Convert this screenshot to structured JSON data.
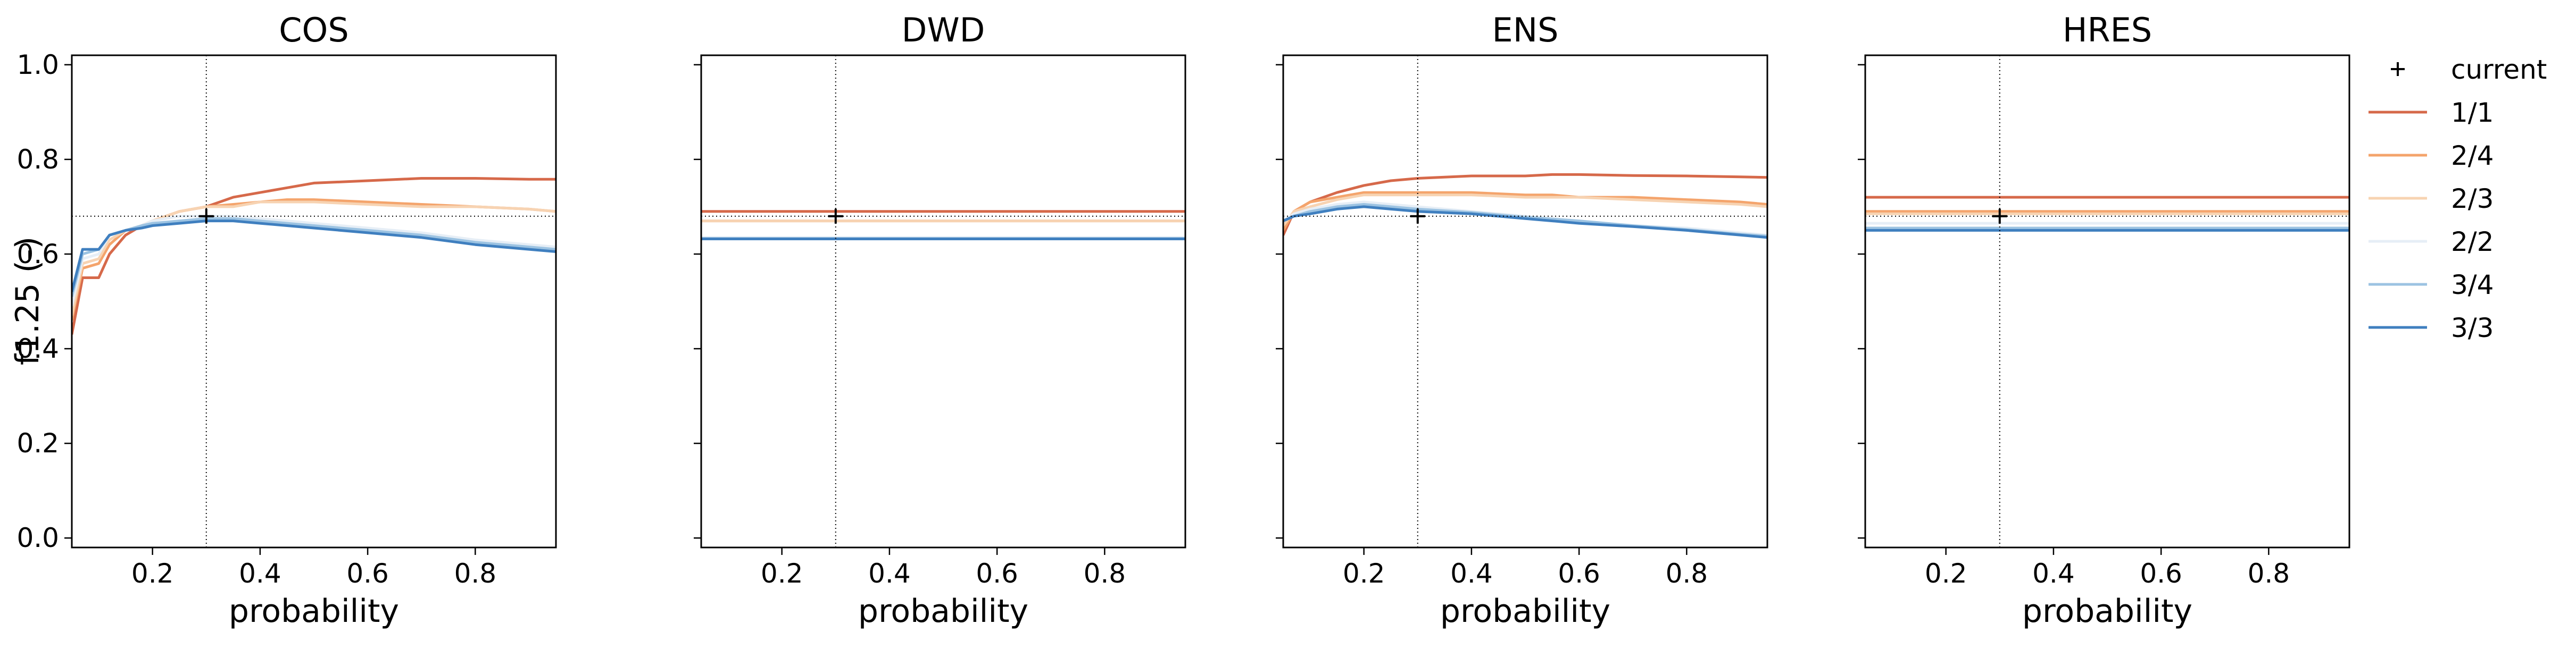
{
  "figure": {
    "ylabel": "f1.25 (-)",
    "xlabel": "probability",
    "legend": {
      "placement": "right-outside",
      "current_label": "current"
    }
  },
  "chart_data": [
    {
      "type": "line",
      "title": "COS",
      "xlabel": "probability",
      "ylabel": "f1.25 (-)",
      "xlim": [
        0.05,
        0.95
      ],
      "ylim": [
        -0.02,
        1.02
      ],
      "xticks": [
        0.2,
        0.4,
        0.6,
        0.8
      ],
      "yticks": [
        0.0,
        0.2,
        0.4,
        0.6,
        0.8,
        1.0
      ],
      "current": {
        "x": 0.3,
        "y": 0.68
      },
      "series": [
        {
          "name": "1/1",
          "color": "#d6694a",
          "x": [
            0.05,
            0.07,
            0.1,
            0.12,
            0.15,
            0.18,
            0.2,
            0.25,
            0.3,
            0.35,
            0.4,
            0.45,
            0.5,
            0.6,
            0.7,
            0.8,
            0.9,
            0.95
          ],
          "y": [
            0.43,
            0.55,
            0.55,
            0.6,
            0.64,
            0.66,
            0.67,
            0.69,
            0.7,
            0.72,
            0.73,
            0.74,
            0.75,
            0.755,
            0.76,
            0.76,
            0.758,
            0.758
          ]
        },
        {
          "name": "2/4",
          "color": "#f4a46c",
          "x": [
            0.05,
            0.07,
            0.1,
            0.12,
            0.15,
            0.18,
            0.2,
            0.25,
            0.3,
            0.35,
            0.4,
            0.45,
            0.5,
            0.6,
            0.7,
            0.8,
            0.9,
            0.95
          ],
          "y": [
            0.46,
            0.57,
            0.58,
            0.62,
            0.65,
            0.66,
            0.67,
            0.69,
            0.7,
            0.705,
            0.71,
            0.715,
            0.715,
            0.71,
            0.705,
            0.7,
            0.695,
            0.69
          ]
        },
        {
          "name": "2/3",
          "color": "#f7d3b2",
          "x": [
            0.05,
            0.07,
            0.1,
            0.12,
            0.15,
            0.18,
            0.2,
            0.25,
            0.3,
            0.35,
            0.4,
            0.45,
            0.5,
            0.6,
            0.7,
            0.8,
            0.9,
            0.95
          ],
          "y": [
            0.47,
            0.58,
            0.59,
            0.63,
            0.65,
            0.66,
            0.67,
            0.69,
            0.7,
            0.7,
            0.71,
            0.71,
            0.71,
            0.705,
            0.7,
            0.7,
            0.695,
            0.69
          ]
        },
        {
          "name": "2/2",
          "color": "#e6eef6",
          "x": [
            0.05,
            0.07,
            0.1,
            0.12,
            0.15,
            0.18,
            0.2,
            0.25,
            0.3,
            0.35,
            0.4,
            0.45,
            0.5,
            0.6,
            0.7,
            0.8,
            0.9,
            0.95
          ],
          "y": [
            0.49,
            0.59,
            0.6,
            0.64,
            0.65,
            0.66,
            0.67,
            0.68,
            0.68,
            0.68,
            0.675,
            0.67,
            0.665,
            0.655,
            0.645,
            0.63,
            0.62,
            0.615
          ]
        },
        {
          "name": "3/4",
          "color": "#9cc3e2",
          "x": [
            0.05,
            0.07,
            0.1,
            0.12,
            0.15,
            0.18,
            0.2,
            0.25,
            0.3,
            0.35,
            0.4,
            0.45,
            0.5,
            0.6,
            0.7,
            0.8,
            0.9,
            0.95
          ],
          "y": [
            0.51,
            0.6,
            0.61,
            0.64,
            0.65,
            0.66,
            0.665,
            0.67,
            0.675,
            0.675,
            0.67,
            0.665,
            0.66,
            0.65,
            0.64,
            0.625,
            0.615,
            0.61
          ]
        },
        {
          "name": "3/3",
          "color": "#3f7fbf",
          "x": [
            0.05,
            0.07,
            0.1,
            0.12,
            0.15,
            0.18,
            0.2,
            0.25,
            0.3,
            0.35,
            0.4,
            0.45,
            0.5,
            0.6,
            0.7,
            0.8,
            0.9,
            0.95
          ],
          "y": [
            0.52,
            0.61,
            0.61,
            0.64,
            0.65,
            0.655,
            0.66,
            0.665,
            0.67,
            0.67,
            0.665,
            0.66,
            0.655,
            0.645,
            0.635,
            0.62,
            0.61,
            0.605
          ]
        }
      ]
    },
    {
      "type": "line",
      "title": "DWD",
      "xlabel": "probability",
      "xlim": [
        0.05,
        0.95
      ],
      "ylim": [
        -0.02,
        1.02
      ],
      "xticks": [
        0.2,
        0.4,
        0.6,
        0.8
      ],
      "yticks": [
        0.0,
        0.2,
        0.4,
        0.6,
        0.8,
        1.0
      ],
      "current": {
        "x": 0.3,
        "y": 0.68
      },
      "series": [
        {
          "name": "1/1",
          "color": "#d6694a",
          "x": [
            0.05,
            0.95
          ],
          "y": [
            0.69,
            0.69
          ]
        },
        {
          "name": "2/4",
          "color": "#f4a46c",
          "x": [
            0.05,
            0.95
          ],
          "y": [
            0.67,
            0.67
          ]
        },
        {
          "name": "2/3",
          "color": "#f7d3b2",
          "x": [
            0.05,
            0.95
          ],
          "y": [
            0.67,
            0.67
          ]
        },
        {
          "name": "2/2",
          "color": "#e6eef6",
          "x": [
            0.05,
            0.95
          ],
          "y": [
            0.635,
            0.635
          ]
        },
        {
          "name": "3/4",
          "color": "#9cc3e2",
          "x": [
            0.05,
            0.95
          ],
          "y": [
            0.633,
            0.633
          ]
        },
        {
          "name": "3/3",
          "color": "#3f7fbf",
          "x": [
            0.05,
            0.95
          ],
          "y": [
            0.632,
            0.632
          ]
        }
      ]
    },
    {
      "type": "line",
      "title": "ENS",
      "xlabel": "probability",
      "xlim": [
        0.05,
        0.95
      ],
      "ylim": [
        -0.02,
        1.02
      ],
      "xticks": [
        0.2,
        0.4,
        0.6,
        0.8
      ],
      "yticks": [
        0.0,
        0.2,
        0.4,
        0.6,
        0.8,
        1.0
      ],
      "current": {
        "x": 0.3,
        "y": 0.68
      },
      "series": [
        {
          "name": "1/1",
          "color": "#d6694a",
          "x": [
            0.05,
            0.07,
            0.1,
            0.15,
            0.2,
            0.25,
            0.3,
            0.4,
            0.5,
            0.55,
            0.6,
            0.7,
            0.8,
            0.9,
            0.95
          ],
          "y": [
            0.64,
            0.69,
            0.71,
            0.73,
            0.745,
            0.755,
            0.76,
            0.765,
            0.765,
            0.768,
            0.768,
            0.766,
            0.765,
            0.763,
            0.762
          ]
        },
        {
          "name": "2/4",
          "color": "#f4a46c",
          "x": [
            0.05,
            0.07,
            0.1,
            0.15,
            0.2,
            0.25,
            0.3,
            0.4,
            0.5,
            0.55,
            0.6,
            0.7,
            0.8,
            0.9,
            0.95
          ],
          "y": [
            0.65,
            0.69,
            0.71,
            0.72,
            0.73,
            0.73,
            0.73,
            0.73,
            0.725,
            0.725,
            0.72,
            0.72,
            0.715,
            0.71,
            0.705
          ]
        },
        {
          "name": "2/3",
          "color": "#f7d3b2",
          "x": [
            0.05,
            0.07,
            0.1,
            0.15,
            0.2,
            0.25,
            0.3,
            0.4,
            0.5,
            0.55,
            0.6,
            0.7,
            0.8,
            0.9,
            0.95
          ],
          "y": [
            0.66,
            0.69,
            0.7,
            0.715,
            0.725,
            0.725,
            0.725,
            0.725,
            0.72,
            0.72,
            0.72,
            0.715,
            0.71,
            0.705,
            0.7
          ]
        },
        {
          "name": "2/2",
          "color": "#e6eef6",
          "x": [
            0.05,
            0.07,
            0.1,
            0.15,
            0.2,
            0.25,
            0.3,
            0.4,
            0.5,
            0.55,
            0.6,
            0.7,
            0.8,
            0.9,
            0.95
          ],
          "y": [
            0.67,
            0.685,
            0.695,
            0.705,
            0.71,
            0.705,
            0.7,
            0.69,
            0.68,
            0.675,
            0.67,
            0.66,
            0.655,
            0.645,
            0.64
          ]
        },
        {
          "name": "3/4",
          "color": "#9cc3e2",
          "x": [
            0.05,
            0.07,
            0.1,
            0.15,
            0.2,
            0.25,
            0.3,
            0.4,
            0.5,
            0.55,
            0.6,
            0.7,
            0.8,
            0.9,
            0.95
          ],
          "y": [
            0.67,
            0.68,
            0.69,
            0.7,
            0.705,
            0.7,
            0.695,
            0.688,
            0.678,
            0.674,
            0.67,
            0.66,
            0.652,
            0.642,
            0.638
          ]
        },
        {
          "name": "3/3",
          "color": "#3f7fbf",
          "x": [
            0.05,
            0.07,
            0.1,
            0.15,
            0.2,
            0.25,
            0.3,
            0.4,
            0.5,
            0.55,
            0.6,
            0.7,
            0.8,
            0.9,
            0.95
          ],
          "y": [
            0.67,
            0.68,
            0.685,
            0.695,
            0.7,
            0.695,
            0.69,
            0.685,
            0.675,
            0.67,
            0.665,
            0.658,
            0.65,
            0.64,
            0.635
          ]
        }
      ]
    },
    {
      "type": "line",
      "title": "HRES",
      "xlabel": "probability",
      "xlim": [
        0.05,
        0.95
      ],
      "ylim": [
        -0.02,
        1.02
      ],
      "xticks": [
        0.2,
        0.4,
        0.6,
        0.8
      ],
      "yticks": [
        0.0,
        0.2,
        0.4,
        0.6,
        0.8,
        1.0
      ],
      "current": {
        "x": 0.3,
        "y": 0.68
      },
      "series": [
        {
          "name": "1/1",
          "color": "#d6694a",
          "x": [
            0.05,
            0.95
          ],
          "y": [
            0.72,
            0.72
          ]
        },
        {
          "name": "2/4",
          "color": "#f4a46c",
          "x": [
            0.05,
            0.95
          ],
          "y": [
            0.69,
            0.69
          ]
        },
        {
          "name": "2/3",
          "color": "#f7d3b2",
          "x": [
            0.05,
            0.95
          ],
          "y": [
            0.685,
            0.685
          ]
        },
        {
          "name": "2/2",
          "color": "#e6eef6",
          "x": [
            0.05,
            0.95
          ],
          "y": [
            0.665,
            0.665
          ]
        },
        {
          "name": "3/4",
          "color": "#9cc3e2",
          "x": [
            0.05,
            0.95
          ],
          "y": [
            0.655,
            0.655
          ]
        },
        {
          "name": "3/3",
          "color": "#3f7fbf",
          "x": [
            0.05,
            0.95
          ],
          "y": [
            0.65,
            0.65
          ]
        }
      ]
    }
  ]
}
